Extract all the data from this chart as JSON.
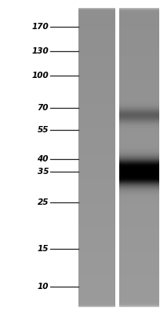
{
  "fig_width": 2.04,
  "fig_height": 4.0,
  "dpi": 100,
  "bg_color": "#ffffff",
  "ladder_labels": [
    "170",
    "130",
    "100",
    "70",
    "55",
    "40",
    "35",
    "25",
    "15",
    "10"
  ],
  "ladder_mw": [
    170,
    130,
    100,
    70,
    55,
    40,
    35,
    25,
    15,
    10
  ],
  "y_min": 8,
  "y_max": 210,
  "gel_gray_base": 0.56,
  "gel_gray_gradient": 0.05,
  "band1_mw": 65,
  "band1_intensity": 0.22,
  "band1_sigma": 6,
  "band2_mw": 35,
  "band2_intensity": 0.92,
  "band2_sigma": 10,
  "label_fontsize": 7.5,
  "tick_line_color": "#222222"
}
